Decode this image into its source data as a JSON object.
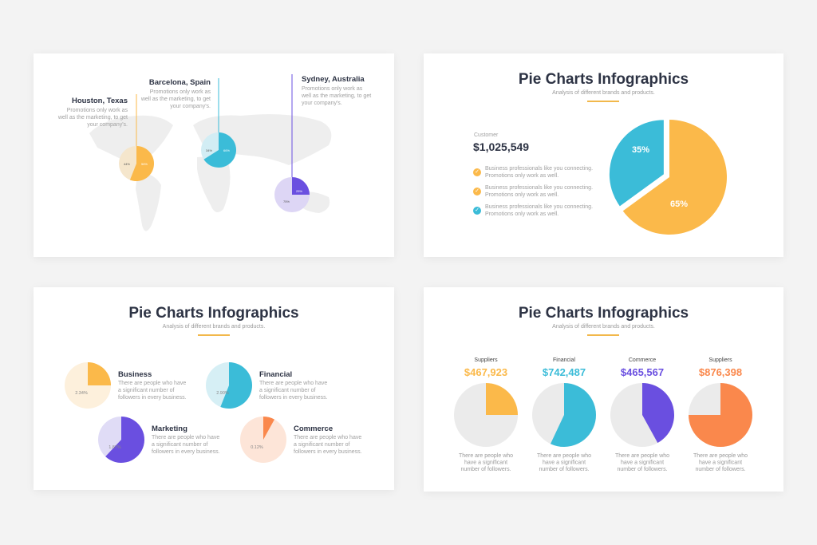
{
  "colors": {
    "yellow": "#fbb94a",
    "blue": "#3bbcd8",
    "purple": "#6a4fe0",
    "orange": "#fa884c",
    "light_gray": "#ececec",
    "map": "#ececec"
  },
  "slide1": {
    "locations": [
      {
        "name": "Houston, Texas",
        "text": "Promotions only work as well as the marketing, to get your company's.",
        "slices": [
          {
            "label": "44%",
            "value": 44
          },
          {
            "label": "56%",
            "value": 56
          }
        ],
        "color": "#fbb94a",
        "light": "#f5e6cc"
      },
      {
        "name": "Barcelona, Spain",
        "text": "Promotions only work as well as the marketing, to get your company's.",
        "slices": [
          {
            "label": "34%",
            "value": 34
          },
          {
            "label": "66%",
            "value": 66
          }
        ],
        "color": "#3bbcd8",
        "light": "#d2edf4"
      },
      {
        "name": "Sydney, Australia",
        "text": "Promotions only work as well as the marketing, to get your company's.",
        "slices": [
          {
            "label": "75%",
            "value": 75
          },
          {
            "label": "25%",
            "value": 25
          }
        ],
        "color": "#6a4fe0",
        "light": "#ddd6f5"
      }
    ]
  },
  "slide2": {
    "title": "Pie Charts Infographics",
    "subtitle": "Analysis of different brands and products.",
    "customer_label": "Customer",
    "customer_value": "$1,025,549",
    "bullets": [
      {
        "line1": "Business professionals like you connecting.",
        "line2": "Promotions only work as well.",
        "color": "#fbb94a"
      },
      {
        "line1": "Business professionals like you connecting.",
        "line2": "Promotions only work as well.",
        "color": "#fbb94a"
      },
      {
        "line1": "Business professionals like you connecting.",
        "line2": "Promotions only work as well.",
        "color": "#3bbcd8"
      }
    ],
    "chart_data": {
      "type": "pie",
      "slices": [
        {
          "label": "35%",
          "value": 35,
          "color": "#3bbcd8"
        },
        {
          "label": "65%",
          "value": 65,
          "color": "#fbb94a"
        }
      ]
    }
  },
  "slide3": {
    "title": "Pie Charts Infographics",
    "subtitle": "Analysis of different brands and products.",
    "items": [
      {
        "name": "Business",
        "pct_label": "2.34%",
        "fill": 0.25,
        "color": "#fbb94a",
        "light": "#fdf0dc",
        "text": [
          "There are people who have",
          "a significant number of",
          "followers in every business."
        ]
      },
      {
        "name": "Financial",
        "pct_label": "2.90%",
        "fill": 0.56,
        "color": "#3bbcd8",
        "light": "#d6eff5",
        "text": [
          "There are people who have",
          "a significant number of",
          "followers in every business."
        ]
      },
      {
        "name": "Marketing",
        "pct_label": "1.87%",
        "fill": 0.62,
        "color": "#6a4fe0",
        "light": "#e0dcf6",
        "text": [
          "There are people who have",
          "a significant number of",
          "followers in every business."
        ]
      },
      {
        "name": "Commerce",
        "pct_label": "0.12%",
        "fill": 0.08,
        "color": "#fa884c",
        "light": "#fde5d8",
        "text": [
          "There are people who have",
          "a significant number of",
          "followers in every business."
        ]
      }
    ]
  },
  "slide4": {
    "title": "Pie Charts Infographics",
    "subtitle": "Analysis of different brands and products.",
    "items": [
      {
        "label": "Suppliers",
        "value": "$467,923",
        "fill": 0.25,
        "color": "#fbb94a",
        "text": [
          "There are people who",
          "have a significant",
          "number of followers."
        ]
      },
      {
        "label": "Financial",
        "value": "$742,487",
        "fill": 0.57,
        "color": "#3bbcd8",
        "text": [
          "There are people who",
          "have a significant",
          "number of followers."
        ]
      },
      {
        "label": "Commerce",
        "value": "$465,567",
        "fill": 0.42,
        "color": "#6a4fe0",
        "text": [
          "There are people who",
          "have a significant",
          "number of followers."
        ]
      },
      {
        "label": "Suppliers",
        "value": "$876,398",
        "fill": 0.75,
        "color": "#fa884c",
        "text": [
          "There are people who",
          "have a significant",
          "number of followers."
        ]
      }
    ]
  }
}
